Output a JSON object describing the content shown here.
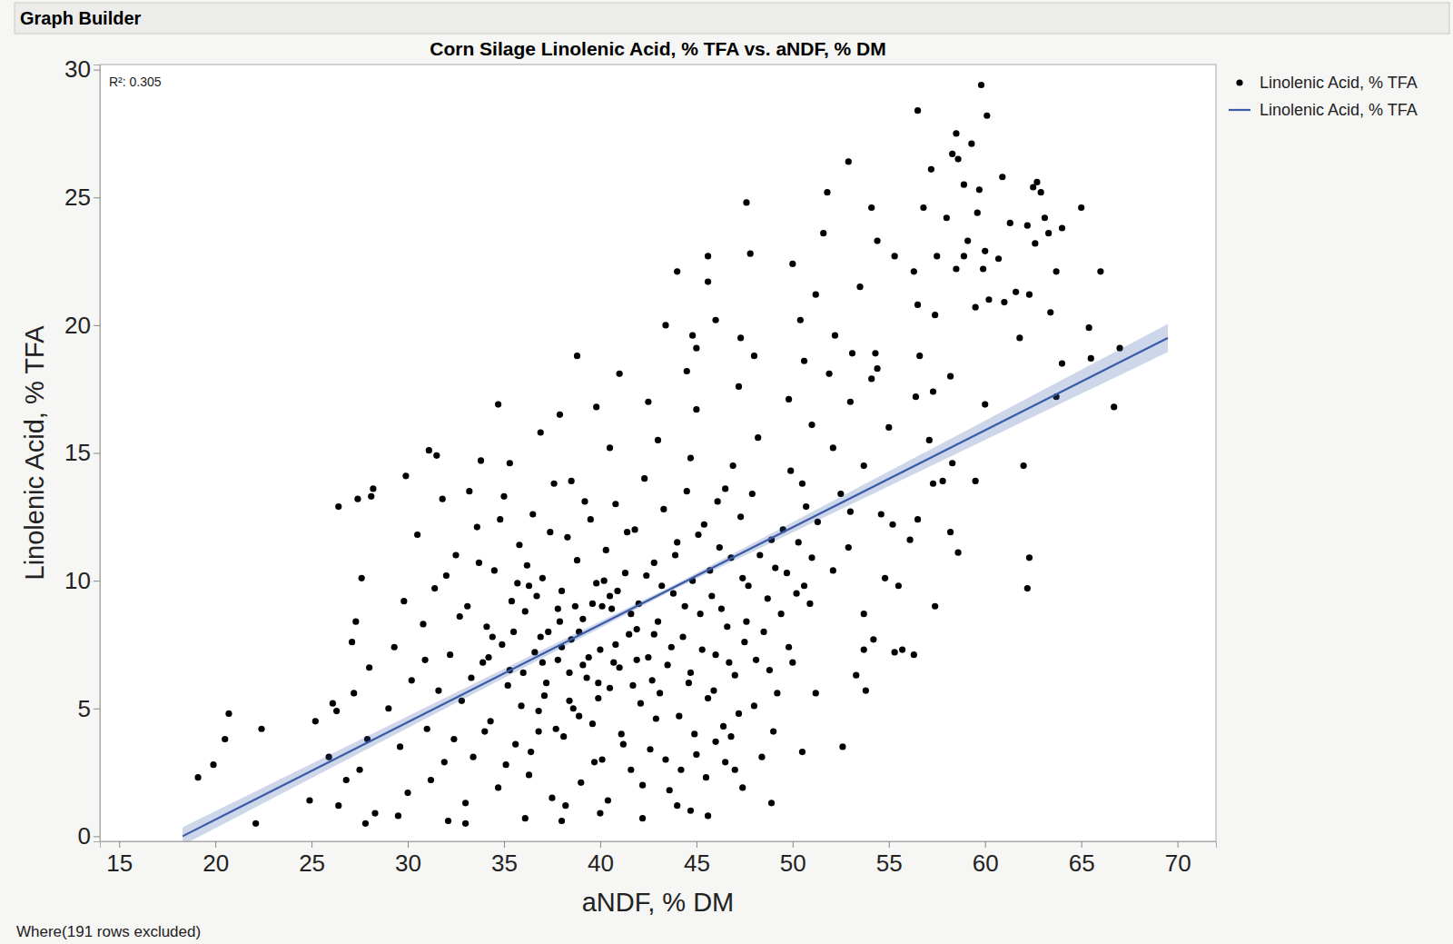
{
  "chart_data": {
    "type": "scatter",
    "header": "Graph Builder",
    "title": "Corn Silage Linolenic Acid, % TFA vs. aNDF, % DM",
    "xlabel": "aNDF, % DM",
    "ylabel": "Linolenic Acid, % TFA",
    "annotation": "R²: 0.305",
    "footnote": "Where(191 rows excluded)",
    "xlim": [
      14,
      72
    ],
    "ylim": [
      -0.2,
      30.2
    ],
    "xticks": [
      15,
      20,
      25,
      30,
      35,
      40,
      45,
      50,
      55,
      60,
      65,
      70
    ],
    "yticks": [
      0,
      5,
      10,
      15,
      20,
      25,
      30
    ],
    "grid": false,
    "legend": "right",
    "series": [
      {
        "name": "Linolenic Acid, % TFA",
        "type": "scatter",
        "marker": "circle",
        "color": "#000000",
        "x": [
          59.8,
          56.5,
          60.1,
          58.5,
          59.3,
          58.3,
          58.6,
          52.9,
          57.2,
          60.9,
          62.7,
          58.9,
          59.7,
          62.5,
          51.8,
          62.9,
          47.6,
          54.1,
          65.0,
          56.8,
          59.6,
          58.0,
          63.1,
          61.3,
          62.2,
          64.0,
          51.6,
          63.3,
          62.6,
          54.4,
          59.1,
          60.0,
          58.9,
          57.5,
          55.3,
          60.7,
          45.6,
          47.8,
          50.0,
          59.9,
          58.5,
          56.3,
          63.7,
          66.0,
          44.0,
          45.6,
          53.5,
          61.6,
          62.3,
          51.2,
          60.2,
          61.0,
          59.5,
          56.5,
          63.4,
          57.4,
          50.4,
          46.0,
          43.4,
          44.8,
          52.2,
          65.4,
          61.8,
          45.0,
          67.0,
          47.3,
          38.8,
          53.1,
          54.3,
          56.6,
          41.0,
          48.0,
          64.0,
          54.4,
          50.6,
          44.5,
          58.2,
          51.9,
          65.5,
          54.1,
          57.3,
          56.4,
          60.0,
          63.7,
          66.7,
          49.8,
          47.2,
          53.0,
          55.0,
          51.0,
          34.7,
          37.9,
          39.8,
          42.5,
          45.0,
          31.1,
          31.5,
          29.9,
          57.1,
          52.1,
          53.7,
          58.3,
          62.0,
          33.8,
          35.3,
          36.9,
          40.5,
          43.0,
          44.7,
          48.2,
          49.9,
          57.3,
          59.5,
          57.8,
          52.5,
          54.6,
          26.4,
          27.4,
          28.2,
          28.1,
          31.8,
          33.2,
          38.5,
          46.5,
          50.5,
          56.5,
          53.0,
          55.2,
          56.1,
          58.2,
          62.3,
          58.6,
          62.2,
          54.8,
          52.1,
          55.5,
          52.9,
          57.4,
          53.7,
          50.9,
          54.2,
          55.7,
          53.7,
          55.3,
          56.3,
          53.3,
          51.2,
          53.8,
          50.5,
          52.6,
          49.0,
          48.9,
          47.4,
          47.0,
          46.0,
          46.8,
          44.7,
          45.6,
          44.0,
          42.2,
          40.0,
          38.0,
          36.1,
          33.0,
          32.1,
          29.5,
          27.8,
          28.3,
          22.1,
          19.1,
          19.9,
          20.5,
          20.7,
          22.4,
          25.2,
          24.9,
          26.4,
          26.8,
          25.9,
          26.1,
          26.3,
          27.1,
          27.6,
          27.3,
          28.0,
          27.2,
          27.9,
          27.5,
          30.2,
          30.8,
          31.0,
          31.4,
          31.9,
          32.2,
          32.5,
          32.8,
          33.1,
          33.4,
          33.6,
          33.9,
          34.1,
          34.3,
          34.5,
          34.7,
          34.9,
          35.0,
          35.2,
          35.4,
          35.6,
          35.8,
          36.0,
          36.1,
          36.3,
          36.5,
          36.6,
          36.8,
          37.0,
          37.1,
          37.3,
          37.5,
          37.6,
          37.8,
          38.0,
          38.1,
          38.3,
          38.5,
          38.6,
          38.8,
          39.0,
          39.1,
          39.3,
          39.5,
          39.6,
          39.8,
          40.0,
          40.1,
          40.3,
          40.5,
          40.6,
          40.8,
          41.0,
          41.1,
          41.3,
          41.5,
          41.6,
          41.8,
          42.0,
          42.1,
          42.3,
          42.5,
          42.6,
          42.8,
          43.0,
          43.1,
          43.3,
          43.5,
          43.6,
          43.8,
          44.0,
          44.1,
          44.3,
          44.5,
          44.6,
          44.8,
          45.0,
          45.2,
          45.4,
          45.6,
          45.8,
          46.0,
          46.2,
          46.4,
          46.6,
          46.8,
          47.0,
          47.3,
          47.5,
          47.7,
          48.0,
          48.3,
          48.5,
          48.8,
          49.1,
          49.5,
          49.8,
          50.2,
          50.7,
          51.0,
          29.0,
          29.3,
          29.6,
          29.8,
          30.0,
          30.5,
          30.9,
          31.2,
          31.6,
          32.0,
          32.4,
          32.7,
          33.0,
          33.3,
          33.7,
          34.0,
          34.4,
          34.8,
          35.1,
          35.5,
          35.9,
          36.2,
          36.4,
          36.7,
          37.2,
          37.4,
          37.7,
          37.9,
          38.2,
          38.4,
          38.7,
          38.9,
          39.2,
          39.4,
          39.7,
          39.9,
          40.2,
          40.4,
          40.7,
          40.9,
          41.2,
          41.4,
          41.7,
          41.9,
          42.2,
          42.4,
          42.7,
          42.9,
          43.2,
          43.4,
          43.7,
          43.9,
          44.2,
          44.4,
          44.7,
          44.9,
          45.1,
          45.3,
          45.5,
          45.7,
          45.9,
          46.1,
          46.3,
          46.5,
          46.7,
          46.9,
          47.2,
          47.4,
          47.6,
          47.9,
          48.1,
          48.4,
          48.7,
          48.9,
          49.2,
          49.4,
          49.7,
          50.0,
          50.3,
          50.6,
          51.3,
          34.2,
          35.3,
          36.9,
          37.8,
          38.9,
          39.9,
          40.8,
          41.9,
          42.8,
          35.7,
          36.8,
          38.4,
          39.6,
          40.5,
          41.6,
          37.0,
          38.0,
          39.1,
          40.1,
          36.3
        ],
        "values": [
          29.4,
          28.4,
          28.2,
          27.5,
          27.1,
          26.7,
          26.5,
          26.4,
          26.1,
          25.8,
          25.6,
          25.5,
          25.3,
          25.4,
          25.2,
          25.2,
          24.8,
          24.6,
          24.6,
          24.6,
          24.4,
          24.2,
          24.2,
          24.0,
          23.9,
          23.8,
          23.6,
          23.6,
          23.2,
          23.3,
          23.3,
          22.9,
          22.7,
          22.7,
          22.7,
          22.6,
          22.7,
          22.8,
          22.4,
          22.2,
          22.2,
          22.1,
          22.1,
          22.1,
          22.1,
          21.7,
          21.5,
          21.3,
          21.2,
          21.2,
          21.0,
          20.9,
          20.7,
          20.8,
          20.5,
          20.4,
          20.2,
          20.2,
          20.0,
          19.6,
          19.6,
          19.9,
          19.5,
          19.1,
          19.1,
          19.5,
          18.8,
          18.9,
          18.9,
          18.8,
          18.1,
          18.8,
          18.5,
          18.3,
          18.6,
          18.2,
          18.0,
          18.1,
          18.7,
          17.9,
          17.4,
          17.2,
          16.9,
          17.2,
          16.8,
          17.1,
          17.6,
          17.0,
          16.0,
          16.1,
          16.9,
          16.5,
          16.8,
          17.0,
          16.7,
          15.1,
          14.9,
          14.1,
          15.5,
          15.2,
          14.5,
          14.6,
          14.5,
          14.7,
          14.6,
          15.8,
          15.2,
          15.5,
          14.8,
          15.6,
          14.3,
          13.8,
          13.9,
          13.9,
          13.4,
          12.6,
          12.9,
          13.2,
          13.6,
          13.3,
          13.2,
          13.5,
          13.9,
          13.6,
          13.8,
          12.4,
          12.7,
          12.2,
          11.6,
          11.9,
          10.9,
          11.1,
          9.7,
          10.1,
          10.4,
          9.8,
          11.3,
          9.0,
          8.7,
          9.1,
          7.7,
          7.3,
          7.3,
          7.2,
          7.1,
          6.3,
          5.6,
          5.7,
          3.3,
          3.5,
          4.1,
          1.3,
          1.9,
          2.6,
          3.7,
          3.9,
          1.0,
          0.8,
          1.2,
          0.7,
          0.9,
          0.6,
          0.7,
          0.5,
          0.6,
          0.8,
          0.5,
          0.9,
          0.5,
          2.3,
          2.8,
          3.8,
          4.8,
          4.2,
          4.5,
          1.4,
          1.2,
          2.2,
          3.1,
          5.2,
          4.9,
          7.6,
          10.1,
          8.4,
          6.6,
          5.6,
          3.8,
          2.6,
          6.1,
          8.3,
          4.2,
          9.7,
          2.9,
          7.1,
          11.0,
          5.3,
          9.0,
          3.1,
          12.1,
          6.8,
          8.2,
          4.5,
          10.4,
          1.9,
          7.5,
          13.3,
          5.9,
          9.2,
          3.6,
          11.4,
          6.4,
          8.8,
          2.4,
          12.6,
          7.2,
          4.9,
          10.1,
          5.5,
          8.0,
          1.5,
          13.8,
          6.9,
          9.6,
          3.9,
          11.7,
          7.7,
          5.0,
          10.8,
          2.1,
          8.5,
          6.2,
          12.4,
          4.4,
          9.9,
          7.3,
          3.0,
          11.2,
          5.8,
          8.9,
          13.0,
          6.6,
          4.0,
          10.3,
          7.9,
          2.6,
          12.0,
          9.1,
          5.2,
          14.0,
          7.0,
          3.4,
          10.7,
          8.4,
          5.6,
          12.8,
          6.7,
          1.8,
          9.5,
          11.5,
          4.7,
          7.8,
          13.5,
          6.0,
          10.0,
          3.2,
          8.7,
          12.2,
          5.4,
          9.4,
          7.1,
          11.3,
          4.3,
          8.2,
          10.9,
          6.3,
          12.5,
          7.6,
          9.8,
          5.1,
          11.0,
          8.0,
          6.5,
          10.5,
          12.0,
          7.4,
          9.5,
          12.9,
          10.9,
          5.0,
          7.4,
          3.5,
          9.2,
          1.7,
          11.8,
          6.9,
          2.2,
          5.7,
          10.2,
          3.8,
          8.6,
          1.3,
          6.2,
          10.7,
          4.1,
          7.8,
          12.4,
          2.8,
          8.0,
          5.1,
          10.6,
          3.3,
          9.4,
          6.0,
          11.9,
          4.2,
          8.4,
          1.2,
          6.4,
          9.0,
          4.7,
          13.1,
          7.0,
          2.9,
          5.4,
          10.0,
          1.4,
          6.8,
          9.6,
          3.6,
          11.9,
          5.9,
          8.1,
          2.0,
          10.2,
          6.1,
          4.6,
          9.8,
          3.0,
          7.4,
          11.0,
          2.6,
          9.0,
          6.4,
          4.0,
          11.8,
          7.3,
          2.3,
          10.4,
          5.7,
          13.1,
          8.9,
          2.9,
          6.8,
          14.5,
          4.8,
          10.1,
          8.4,
          13.4,
          6.9,
          3.1,
          9.3,
          11.6,
          5.6,
          8.7,
          10.3,
          6.8,
          11.5,
          9.8,
          12.3,
          7.0,
          6.5,
          7.8,
          8.9,
          8.0,
          6.0,
          7.5,
          6.9,
          7.9,
          9.9,
          4.1,
          5.3,
          9.1,
          9.4,
          8.7,
          6.8,
          7.4,
          6.7,
          9.0,
          9.8
        ]
      },
      {
        "name": "Linolenic Acid, % TFA",
        "type": "line",
        "line_style": "solid",
        "color": "#3a5ba8",
        "x": [
          18.3,
          43.8,
          69.5
        ],
        "values": [
          0.0,
          9.73,
          19.5
        ],
        "lower": [
          -0.35,
          9.64,
          18.95
        ],
        "upper": [
          0.35,
          9.82,
          20.05
        ]
      }
    ]
  }
}
